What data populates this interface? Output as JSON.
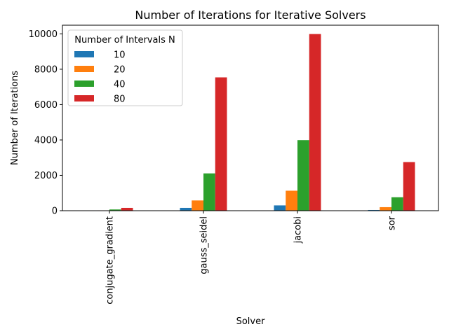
{
  "chart_data": {
    "type": "bar",
    "title": "Number of Iterations for Iterative Solvers",
    "xlabel": "Solver",
    "ylabel": "Number of Iterations",
    "categories": [
      "conjugate_gradient",
      "gauss_seidel",
      "jacobi",
      "sor"
    ],
    "series": [
      {
        "name": "10",
        "color": "#1f77b4",
        "values": [
          10,
          160,
          300,
          40
        ]
      },
      {
        "name": "20",
        "color": "#ff7f0e",
        "values": [
          20,
          580,
          1130,
          200
        ]
      },
      {
        "name": "40",
        "color": "#2ca02c",
        "values": [
          70,
          2110,
          3990,
          760
        ]
      },
      {
        "name": "80",
        "color": "#d62728",
        "values": [
          160,
          7540,
          9990,
          2750
        ]
      }
    ],
    "ylim": [
      0,
      10490
    ],
    "yticks": [
      0,
      2000,
      4000,
      6000,
      8000,
      10000
    ],
    "legend": {
      "title": "Number of Intervals N",
      "placement": "top-left"
    },
    "grid": false
  }
}
